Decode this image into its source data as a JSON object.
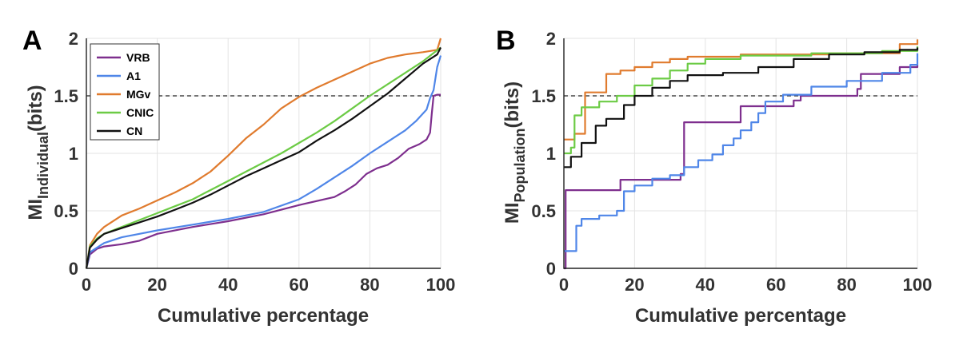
{
  "chart_data": [
    {
      "type": "line",
      "panel_label": "A",
      "xlabel": "Cumulative percentage",
      "ylabel": "MI",
      "ylabel_subscript": "Individual",
      "ylabel_suffix": "(bits)",
      "xlim": [
        0,
        100
      ],
      "ylim": [
        0,
        2
      ],
      "xticks": [
        "0",
        "20",
        "40",
        "60",
        "80",
        "100"
      ],
      "yticks": [
        "0",
        "0.5",
        "1",
        "1.5",
        "2"
      ],
      "grid": true,
      "legend_position": "top-left",
      "reference_line": {
        "y": 1.5,
        "style": "dashed"
      },
      "series": [
        {
          "name": "VRB",
          "color": "#7E2F8E",
          "step": false,
          "x": [
            0,
            1,
            3,
            5,
            10,
            15,
            20,
            30,
            40,
            50,
            60,
            70,
            73,
            76,
            79,
            82,
            85,
            88,
            91,
            94,
            96,
            97,
            97.5,
            98,
            99,
            100
          ],
          "y": [
            0,
            0.12,
            0.17,
            0.19,
            0.21,
            0.24,
            0.3,
            0.36,
            0.41,
            0.47,
            0.55,
            0.62,
            0.67,
            0.73,
            0.82,
            0.87,
            0.9,
            0.96,
            1.04,
            1.08,
            1.12,
            1.18,
            1.35,
            1.5,
            1.51,
            1.51
          ]
        },
        {
          "name": "A1",
          "color": "#4F86E8",
          "step": false,
          "x": [
            0,
            1,
            3,
            5,
            10,
            15,
            20,
            30,
            40,
            50,
            60,
            65,
            70,
            75,
            80,
            85,
            90,
            93,
            96,
            97,
            98,
            99,
            100
          ],
          "y": [
            0,
            0.14,
            0.18,
            0.22,
            0.27,
            0.3,
            0.33,
            0.38,
            0.43,
            0.49,
            0.6,
            0.69,
            0.79,
            0.89,
            1.0,
            1.1,
            1.2,
            1.28,
            1.38,
            1.48,
            1.55,
            1.75,
            1.85
          ]
        },
        {
          "name": "MGv",
          "color": "#E07B2E",
          "step": false,
          "x": [
            0,
            1,
            3,
            5,
            10,
            15,
            20,
            25,
            30,
            35,
            40,
            45,
            50,
            55,
            60,
            65,
            70,
            75,
            80,
            85,
            90,
            95,
            99,
            100
          ],
          "y": [
            0,
            0.2,
            0.3,
            0.36,
            0.46,
            0.52,
            0.59,
            0.66,
            0.74,
            0.84,
            0.98,
            1.13,
            1.25,
            1.39,
            1.49,
            1.57,
            1.64,
            1.71,
            1.78,
            1.83,
            1.86,
            1.88,
            1.9,
            2.0
          ]
        },
        {
          "name": "CNIC",
          "color": "#6CCB45",
          "step": false,
          "x": [
            0,
            1,
            3,
            5,
            10,
            15,
            20,
            25,
            30,
            35,
            40,
            45,
            50,
            55,
            60,
            65,
            70,
            75,
            80,
            85,
            90,
            95,
            100
          ],
          "y": [
            0,
            0.19,
            0.26,
            0.3,
            0.36,
            0.42,
            0.48,
            0.54,
            0.6,
            0.68,
            0.76,
            0.84,
            0.92,
            1.0,
            1.09,
            1.18,
            1.28,
            1.39,
            1.5,
            1.6,
            1.7,
            1.8,
            1.92
          ]
        },
        {
          "name": "CN",
          "color": "#111111",
          "step": false,
          "x": [
            0,
            1,
            3,
            5,
            10,
            15,
            20,
            25,
            30,
            35,
            40,
            45,
            50,
            55,
            60,
            65,
            70,
            75,
            80,
            85,
            90,
            95,
            99,
            100
          ],
          "y": [
            0,
            0.18,
            0.25,
            0.3,
            0.35,
            0.4,
            0.45,
            0.51,
            0.57,
            0.64,
            0.72,
            0.8,
            0.87,
            0.94,
            1.01,
            1.11,
            1.2,
            1.3,
            1.41,
            1.52,
            1.65,
            1.78,
            1.86,
            1.92
          ]
        }
      ]
    },
    {
      "type": "line",
      "panel_label": "B",
      "xlabel": "Cumulative percentage",
      "ylabel": "MI",
      "ylabel_subscript": "Population",
      "ylabel_suffix": "(bits)",
      "xlim": [
        0,
        100
      ],
      "ylim": [
        0,
        2
      ],
      "xticks": [
        "0",
        "20",
        "40",
        "60",
        "80",
        "100"
      ],
      "yticks": [
        "0",
        "0.5",
        "1",
        "1.5",
        "2"
      ],
      "grid": true,
      "reference_line": {
        "y": 1.5,
        "style": "dashed"
      },
      "series": [
        {
          "name": "VRB",
          "color": "#7E2F8E",
          "step": true,
          "x": [
            0,
            0.5,
            16,
            33,
            34,
            50,
            65,
            67,
            83,
            84,
            95,
            100
          ],
          "y": [
            0,
            0.68,
            0.77,
            0.82,
            1.27,
            1.41,
            1.46,
            1.5,
            1.56,
            1.69,
            1.75,
            1.77
          ]
        },
        {
          "name": "A1",
          "color": "#4F86E8",
          "step": true,
          "x": [
            0,
            3.5,
            5,
            10,
            15,
            17,
            20,
            25,
            30,
            34,
            38,
            42,
            45,
            48,
            50,
            53,
            55,
            57,
            62,
            70,
            80,
            90,
            98,
            100
          ],
          "y": [
            0.15,
            0.37,
            0.43,
            0.46,
            0.5,
            0.67,
            0.72,
            0.78,
            0.81,
            0.88,
            0.94,
            0.99,
            1.07,
            1.13,
            1.2,
            1.27,
            1.35,
            1.45,
            1.51,
            1.58,
            1.63,
            1.7,
            1.77,
            1.87
          ]
        },
        {
          "name": "MGv",
          "color": "#E07B2E",
          "step": true,
          "x": [
            0,
            3,
            6,
            12,
            16,
            20,
            25,
            30,
            35,
            50,
            75,
            95,
            100
          ],
          "y": [
            1.12,
            1.17,
            1.53,
            1.69,
            1.72,
            1.75,
            1.79,
            1.82,
            1.84,
            1.86,
            1.87,
            1.95,
            1.99
          ]
        },
        {
          "name": "CNIC",
          "color": "#6CCB45",
          "step": true,
          "x": [
            0,
            2,
            3,
            5,
            10,
            15,
            20,
            25,
            30,
            35,
            40,
            50,
            70,
            90,
            100
          ],
          "y": [
            1.0,
            1.05,
            1.33,
            1.4,
            1.45,
            1.5,
            1.59,
            1.65,
            1.72,
            1.78,
            1.82,
            1.85,
            1.87,
            1.89,
            1.93
          ]
        },
        {
          "name": "CN",
          "color": "#111111",
          "step": true,
          "x": [
            0,
            2,
            5,
            9,
            12,
            17,
            20,
            25,
            30,
            35,
            45,
            55,
            65,
            75,
            85,
            95,
            100
          ],
          "y": [
            0.88,
            0.97,
            1.09,
            1.24,
            1.3,
            1.42,
            1.5,
            1.57,
            1.63,
            1.68,
            1.7,
            1.75,
            1.82,
            1.86,
            1.88,
            1.9,
            1.92
          ]
        }
      ]
    }
  ]
}
